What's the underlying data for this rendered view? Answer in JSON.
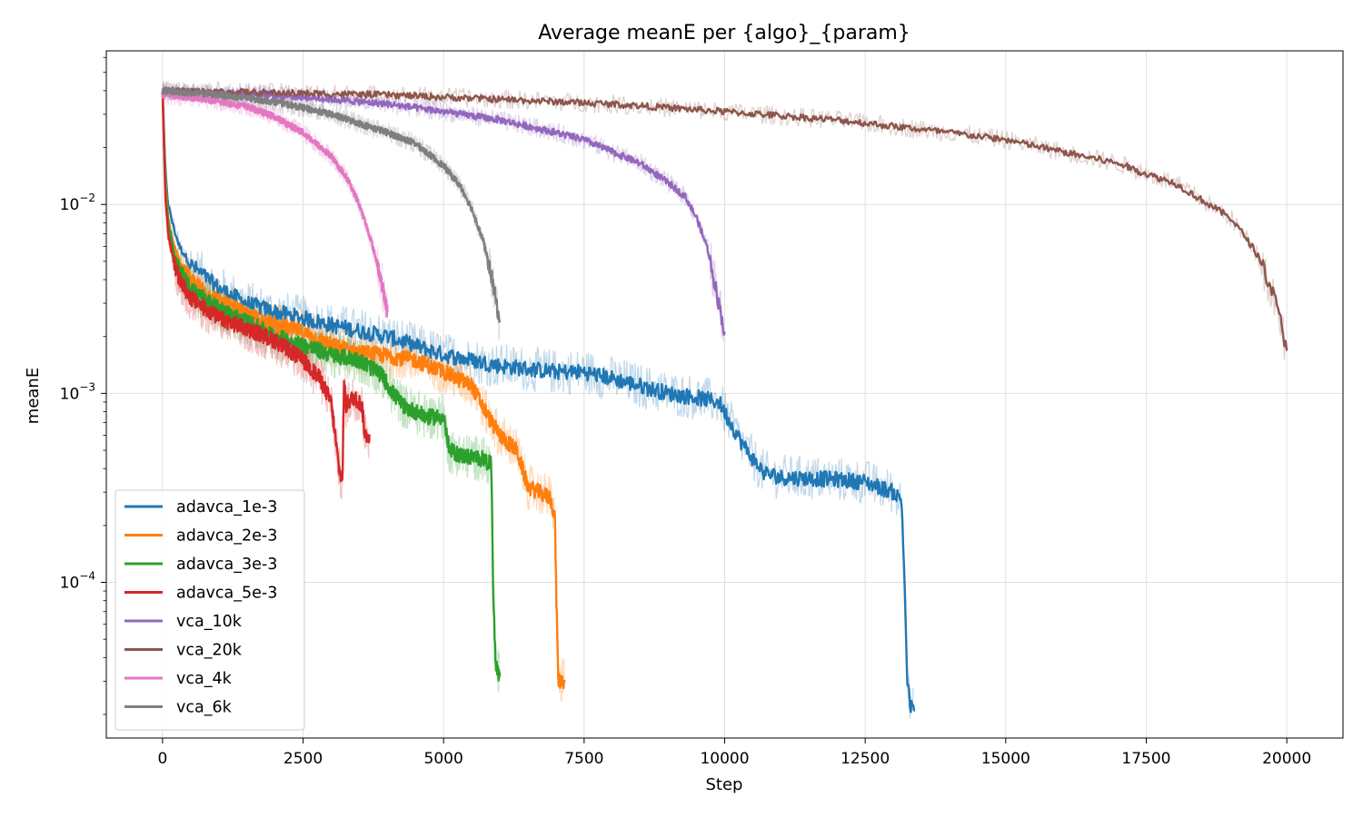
{
  "chart_data": {
    "type": "line",
    "title": "Average meanE per {algo}_{param}",
    "xlabel": "Step",
    "ylabel": "meanE",
    "xlim": [
      -1000,
      21000
    ],
    "ylim": [
      1.5e-05,
      0.065
    ],
    "yscale": "log",
    "grid": true,
    "legend_position": "lower-left",
    "x_ticks": [
      0,
      2500,
      5000,
      7500,
      10000,
      12500,
      15000,
      17500,
      20000
    ],
    "x_tick_labels": [
      "0",
      "2500",
      "5000",
      "7500",
      "10000",
      "12500",
      "15000",
      "17500",
      "20000"
    ],
    "y_ticks": [
      0.0001,
      0.001,
      0.01
    ],
    "y_tick_labels": [
      {
        "base": "10",
        "exp": "−4"
      },
      {
        "base": "10",
        "exp": "−3"
      },
      {
        "base": "10",
        "exp": "−2"
      }
    ],
    "series": [
      {
        "name": "adavca_1e-3",
        "color": "#1f77b4",
        "x": [
          0,
          50,
          100,
          200,
          300,
          500,
          1000,
          1500,
          2000,
          2500,
          3000,
          4000,
          5000,
          6000,
          7000,
          7500,
          8000,
          9000,
          9500,
          9900,
          10100,
          10300,
          10500,
          10700,
          11000,
          12000,
          12500,
          13000,
          13150,
          13200,
          13250,
          13300,
          13370
        ],
        "y": [
          0.04,
          0.015,
          0.01,
          0.0075,
          0.006,
          0.0048,
          0.0036,
          0.003,
          0.0027,
          0.0025,
          0.0023,
          0.002,
          0.0016,
          0.0014,
          0.0013,
          0.0013,
          0.0012,
          0.001,
          0.00095,
          0.0009,
          0.0007,
          0.00055,
          0.00045,
          0.00038,
          0.00036,
          0.00035,
          0.00034,
          0.0003,
          0.00027,
          0.0001,
          3e-05,
          2.2e-05,
          2.1e-05
        ]
      },
      {
        "name": "adavca_2e-3",
        "color": "#ff7f0e",
        "x": [
          0,
          50,
          100,
          200,
          300,
          500,
          1000,
          1500,
          2000,
          2500,
          3000,
          3500,
          4000,
          4500,
          5000,
          5500,
          5800,
          6000,
          6300,
          6500,
          6700,
          6900,
          6980,
          7000,
          7040,
          7100,
          7150
        ],
        "y": [
          0.04,
          0.013,
          0.0085,
          0.006,
          0.005,
          0.004,
          0.0031,
          0.0026,
          0.0023,
          0.0021,
          0.0018,
          0.00165,
          0.00158,
          0.0015,
          0.0013,
          0.0011,
          0.00075,
          0.0006,
          0.0005,
          0.00032,
          0.0003,
          0.00028,
          0.00022,
          0.0001,
          3e-05,
          3e-05,
          3e-05
        ]
      },
      {
        "name": "adavca_3e-3",
        "color": "#2ca02c",
        "x": [
          0,
          50,
          100,
          200,
          300,
          500,
          1000,
          1500,
          2000,
          2500,
          3000,
          3500,
          3900,
          4100,
          4300,
          4500,
          4700,
          5000,
          5100,
          5300,
          5700,
          5850,
          5880,
          5920,
          5950,
          6000
        ],
        "y": [
          0.04,
          0.012,
          0.008,
          0.0055,
          0.0045,
          0.0036,
          0.0028,
          0.0024,
          0.002,
          0.0018,
          0.0016,
          0.0015,
          0.00125,
          0.001,
          0.00085,
          0.0008,
          0.00075,
          0.00075,
          0.0005,
          0.00047,
          0.00045,
          0.00042,
          0.0001,
          4e-05,
          3.4e-05,
          3.3e-05
        ]
      },
      {
        "name": "adavca_5e-3",
        "color": "#d62728",
        "x": [
          0,
          50,
          100,
          200,
          300,
          500,
          1000,
          1500,
          2000,
          2500,
          2800,
          3000,
          3100,
          3150,
          3200,
          3230,
          3260,
          3300,
          3400,
          3500,
          3550,
          3600,
          3680
        ],
        "y": [
          0.04,
          0.011,
          0.007,
          0.005,
          0.004,
          0.0032,
          0.0025,
          0.0022,
          0.0019,
          0.0015,
          0.0012,
          0.0009,
          0.0005,
          0.00038,
          0.00035,
          0.0012,
          0.00085,
          0.0009,
          0.00095,
          0.0009,
          0.00085,
          0.0006,
          0.0006
        ]
      },
      {
        "name": "vca_10k",
        "color": "#9467bd",
        "x": [
          0,
          1000,
          2000,
          3000,
          4000,
          5000,
          6000,
          7000,
          7500,
          8000,
          8500,
          9000,
          9300,
          9500,
          9700,
          9850,
          10000
        ],
        "y": [
          0.04,
          0.039,
          0.038,
          0.036,
          0.034,
          0.031,
          0.028,
          0.024,
          0.022,
          0.019,
          0.0165,
          0.013,
          0.011,
          0.0085,
          0.0058,
          0.0035,
          0.0021
        ]
      },
      {
        "name": "vca_20k",
        "color": "#8c564b",
        "x": [
          0,
          2000,
          4000,
          6000,
          8000,
          10000,
          12000,
          14000,
          15000,
          16000,
          17000,
          17500,
          18000,
          18500,
          19000,
          19300,
          19500,
          19700,
          19850,
          20000
        ],
        "y": [
          0.04,
          0.039,
          0.038,
          0.036,
          0.034,
          0.031,
          0.028,
          0.024,
          0.022,
          0.019,
          0.0165,
          0.0145,
          0.013,
          0.0105,
          0.0085,
          0.0065,
          0.0053,
          0.0038,
          0.0027,
          0.0017
        ]
      },
      {
        "name": "vca_4k",
        "color": "#e377c2",
        "x": [
          0,
          500,
          1000,
          1500,
          2000,
          2500,
          3000,
          3300,
          3500,
          3700,
          3850,
          4000
        ],
        "y": [
          0.038,
          0.037,
          0.035,
          0.033,
          0.029,
          0.024,
          0.018,
          0.0135,
          0.01,
          0.0066,
          0.0045,
          0.0027
        ]
      },
      {
        "name": "vca_6k",
        "color": "#7f7f7f",
        "x": [
          0,
          1000,
          2000,
          3000,
          4000,
          4500,
          5000,
          5300,
          5500,
          5700,
          5850,
          6000
        ],
        "y": [
          0.04,
          0.038,
          0.035,
          0.03,
          0.024,
          0.021,
          0.016,
          0.0125,
          0.0095,
          0.0065,
          0.0042,
          0.0024
        ]
      }
    ]
  }
}
